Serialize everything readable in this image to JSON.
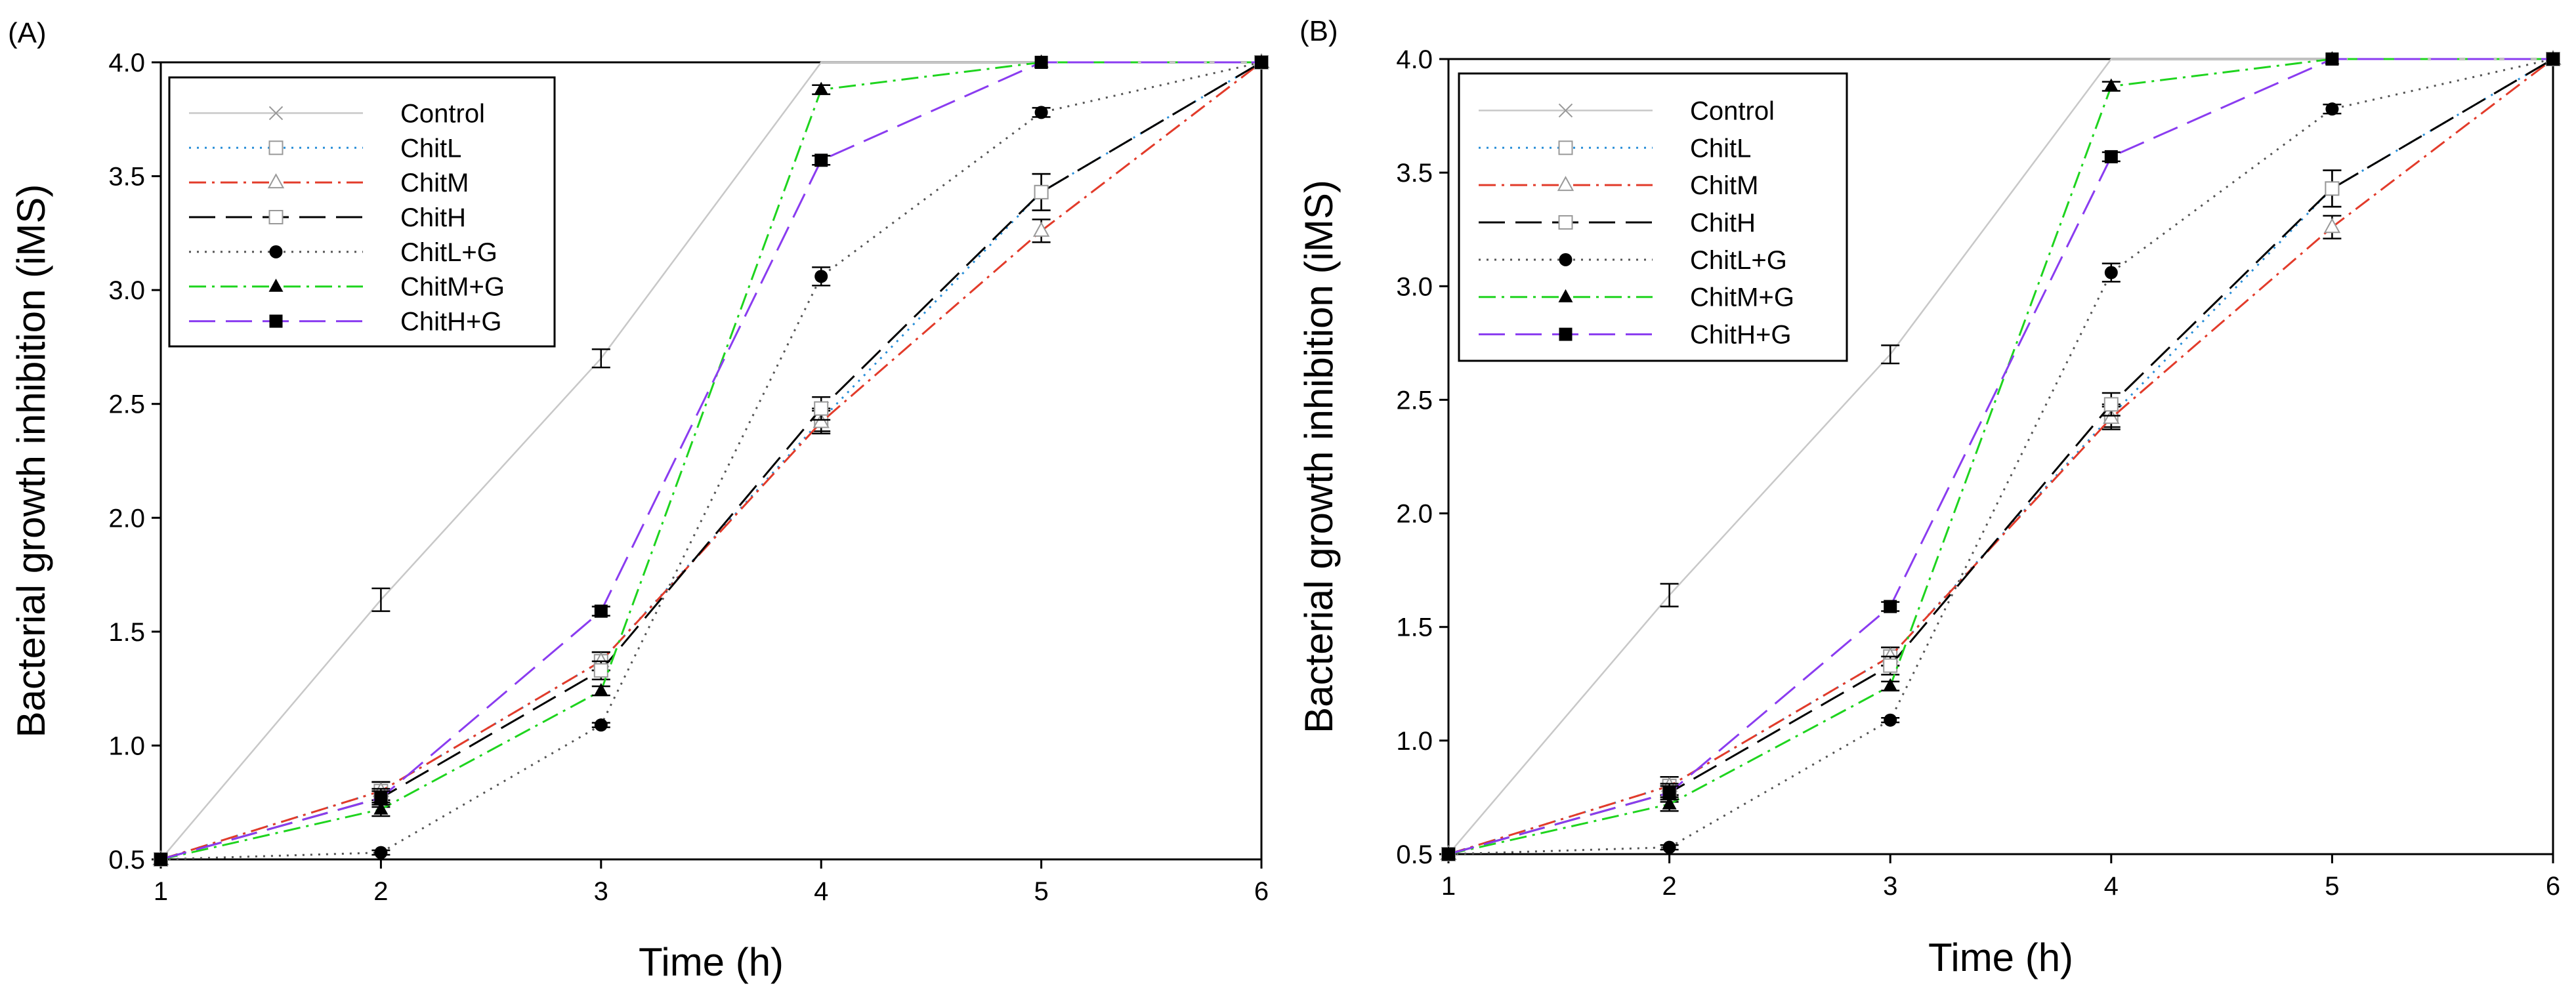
{
  "chart_data": [
    {
      "type": "line",
      "panel_label": "(A)",
      "xlabel": "Time (h)",
      "ylabel": "Bacterial growth inhibition (iMS)",
      "xlim": [
        1,
        6
      ],
      "ylim": [
        0.5,
        4.0
      ],
      "xticks": [
        "1",
        "2",
        "3",
        "4",
        "5",
        "6"
      ],
      "yticks": [
        "0.5",
        "1.0",
        "1.5",
        "2.0",
        "2.5",
        "3.0",
        "3.5",
        "4.0"
      ],
      "legend_position": "top-left",
      "x": [
        1,
        2,
        3,
        4,
        5,
        6
      ],
      "series": [
        {
          "name": "Control",
          "values": [
            0.5,
            1.64,
            2.7,
            4.0,
            4.0,
            4.0
          ],
          "errors": [
            0,
            0.05,
            0.04,
            0,
            0,
            0
          ],
          "color": "#c8c8c8",
          "dash": "solid",
          "marker": "x"
        },
        {
          "name": "ChitL",
          "values": [
            0.5,
            0.8,
            1.37,
            2.43,
            3.43,
            4.0
          ],
          "errors": [
            0,
            0.04,
            0.04,
            0.05,
            0.08,
            0
          ],
          "color": "#2a8fd8",
          "dash": "dot",
          "marker": "open-square"
        },
        {
          "name": "ChitM",
          "values": [
            0.5,
            0.8,
            1.37,
            2.42,
            3.26,
            4.0
          ],
          "errors": [
            0,
            0.04,
            0.04,
            0.05,
            0.05,
            0
          ],
          "color": "#e23b2a",
          "dash": "dashdot",
          "marker": "open-triangle"
        },
        {
          "name": "ChitH",
          "values": [
            0.5,
            0.77,
            1.33,
            2.48,
            3.43,
            4.0
          ],
          "errors": [
            0,
            0.04,
            0.04,
            0.05,
            0.08,
            0
          ],
          "color": "#000000",
          "dash": "longdash",
          "marker": "open-square"
        },
        {
          "name": "ChitL+G",
          "values": [
            0.5,
            0.53,
            1.09,
            3.06,
            3.78,
            4.0
          ],
          "errors": [
            0,
            0.01,
            0.01,
            0.04,
            0.02,
            0
          ],
          "color": "#555555",
          "dash": "dot",
          "marker": "circle"
        },
        {
          "name": "ChitM+G",
          "values": [
            0.5,
            0.72,
            1.24,
            3.88,
            4.0,
            4.0
          ],
          "errors": [
            0,
            0.03,
            0.02,
            0.02,
            0,
            0
          ],
          "color": "#1ed41e",
          "dash": "dashdot",
          "marker": "triangle"
        },
        {
          "name": "ChitH+G",
          "values": [
            0.5,
            0.77,
            1.59,
            3.57,
            4.0,
            4.0
          ],
          "errors": [
            0,
            0.03,
            0.02,
            0.02,
            0,
            0
          ],
          "color": "#8a3cf0",
          "dash": "longdash",
          "marker": "square"
        }
      ]
    },
    {
      "type": "line",
      "panel_label": "(B)",
      "xlabel": "Time (h)",
      "ylabel": "Bacterial growth inhibition (iMS)",
      "xlim": [
        1,
        6
      ],
      "ylim": [
        0.5,
        4.0
      ],
      "xticks": [
        "1",
        "2",
        "3",
        "4",
        "5",
        "6"
      ],
      "yticks": [
        "0.5",
        "1.0",
        "1.5",
        "2.0",
        "2.5",
        "3.0",
        "3.5",
        "4.0"
      ],
      "legend_position": "top-left",
      "x": [
        1,
        2,
        3,
        4,
        5,
        6
      ],
      "series": [
        {
          "name": "Control",
          "values": [
            0.5,
            1.64,
            2.7,
            4.0,
            4.0,
            4.0
          ],
          "errors": [
            0,
            0.05,
            0.04,
            0,
            0,
            0
          ],
          "color": "#c8c8c8",
          "dash": "solid",
          "marker": "x"
        },
        {
          "name": "ChitL",
          "values": [
            0.5,
            0.8,
            1.37,
            2.43,
            3.43,
            4.0
          ],
          "errors": [
            0,
            0.04,
            0.04,
            0.05,
            0.08,
            0
          ],
          "color": "#2a8fd8",
          "dash": "dot",
          "marker": "open-square"
        },
        {
          "name": "ChitM",
          "values": [
            0.5,
            0.8,
            1.37,
            2.42,
            3.26,
            4.0
          ],
          "errors": [
            0,
            0.04,
            0.04,
            0.05,
            0.05,
            0
          ],
          "color": "#e23b2a",
          "dash": "dashdot",
          "marker": "open-triangle"
        },
        {
          "name": "ChitH",
          "values": [
            0.5,
            0.77,
            1.33,
            2.48,
            3.43,
            4.0
          ],
          "errors": [
            0,
            0.04,
            0.04,
            0.05,
            0.08,
            0
          ],
          "color": "#000000",
          "dash": "longdash",
          "marker": "open-square"
        },
        {
          "name": "ChitL+G",
          "values": [
            0.5,
            0.53,
            1.09,
            3.06,
            3.78,
            4.0
          ],
          "errors": [
            0,
            0.01,
            0.01,
            0.04,
            0.02,
            0
          ],
          "color": "#555555",
          "dash": "dot",
          "marker": "circle"
        },
        {
          "name": "ChitM+G",
          "values": [
            0.5,
            0.72,
            1.24,
            3.88,
            4.0,
            4.0
          ],
          "errors": [
            0,
            0.03,
            0.02,
            0.02,
            0,
            0
          ],
          "color": "#1ed41e",
          "dash": "dashdot",
          "marker": "triangle"
        },
        {
          "name": "ChitH+G",
          "values": [
            0.5,
            0.77,
            1.59,
            3.57,
            4.0,
            4.0
          ],
          "errors": [
            0,
            0.03,
            0.02,
            0.02,
            0,
            0
          ],
          "color": "#8a3cf0",
          "dash": "longdash",
          "marker": "square"
        }
      ]
    }
  ]
}
